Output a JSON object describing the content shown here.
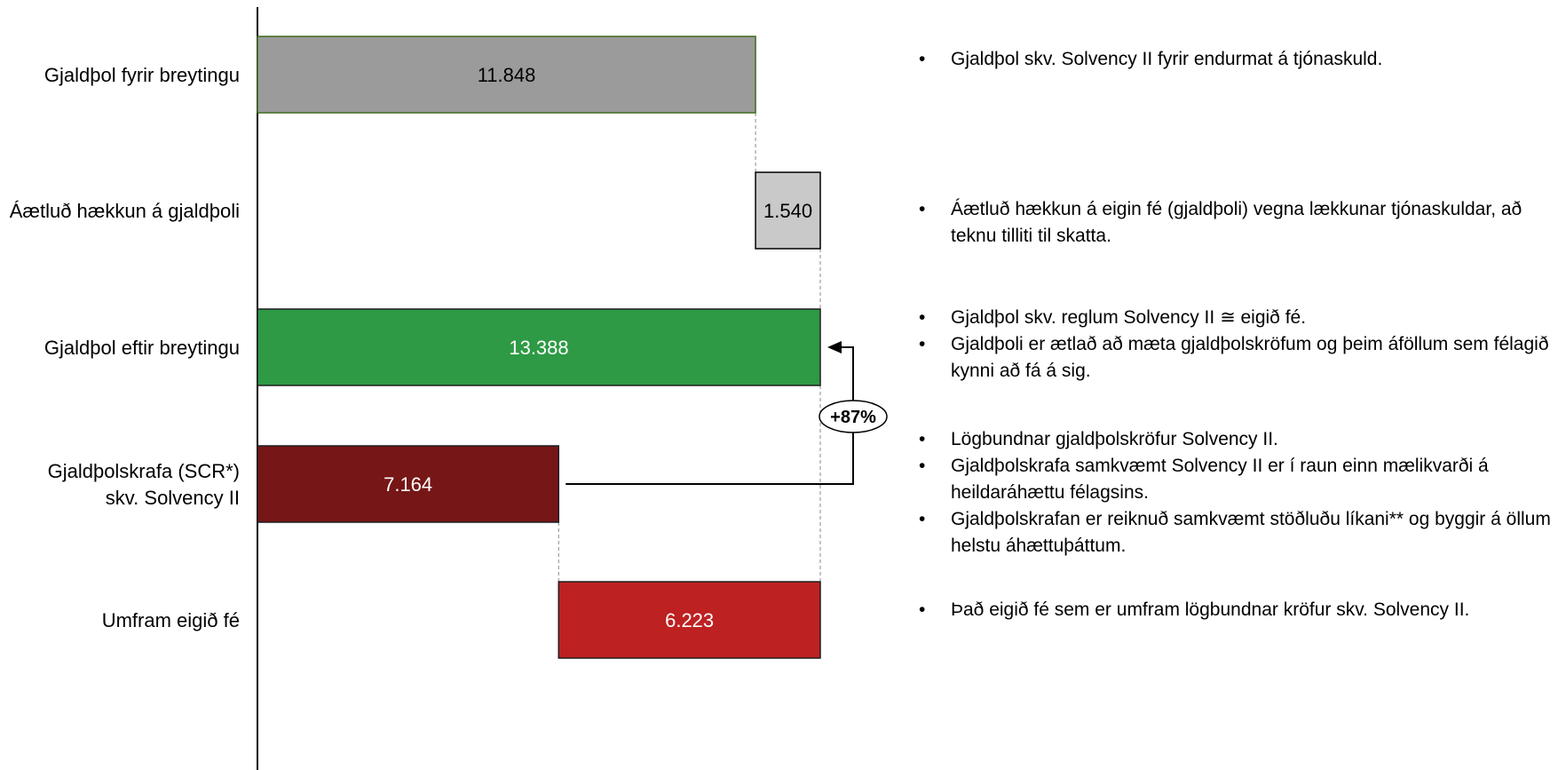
{
  "chart_data": {
    "type": "waterfall",
    "categories": [
      "Gjaldþol fyrir breytingu",
      "Áætluð hækkun á gjaldþoli",
      "Gjaldþol eftir breytingu",
      "Gjaldþolskrafa (SCR*)|skv. Solvency II",
      "Umfram eigið fé"
    ],
    "bars": [
      {
        "label": "11.848",
        "start": 0,
        "end": 11848,
        "color": "#9b9b9b",
        "border": "#3e6b1f",
        "text_color": "#000000"
      },
      {
        "label": "1.540",
        "start": 11848,
        "end": 13388,
        "color": "#c9c9c9",
        "border": "#000000",
        "text_color": "#000000"
      },
      {
        "label": "13.388",
        "start": 0,
        "end": 13388,
        "color": "#2e9a45",
        "border": "#1f1f1f",
        "text_color": "#ffffff"
      },
      {
        "label": "7.164",
        "start": 0,
        "end": 7164,
        "color": "#761616",
        "border": "#1f1f1f",
        "text_color": "#ffffff"
      },
      {
        "label": "6.223",
        "start": 7164,
        "end": 13388,
        "color": "#bd2121",
        "border": "#1f1f1f",
        "text_color": "#ffffff"
      }
    ],
    "annotation": {
      "text": "+87%",
      "from_bar": 3,
      "to_bar": 2
    }
  },
  "notes": [
    [
      "Gjaldþol skv. Solvency II fyrir endurmat á tjónaskuld."
    ],
    [
      "Áætluð hækkun á eigin fé (gjaldþoli) vegna lækkunar tjónaskuldar, að teknu tilliti til skatta."
    ],
    [
      "Gjaldþol skv. reglum Solvency II ≅ eigið fé.",
      "Gjaldþoli er ætlað að mæta gjaldþolskröfum og þeim áföllum sem félagið kynni að fá á sig."
    ],
    [
      "Lögbundnar gjaldþolskröfur Solvency II.",
      "Gjaldþolskrafa samkvæmt Solvency II er í raun einn mælikvarði á heildaráhættu félagsins.",
      "Gjaldþolskrafan er reiknuð samkvæmt stöðluðu líkani** og byggir á öllum helstu áhættuþáttum."
    ],
    [
      "Það eigið fé sem er umfram lögbundnar kröfur skv. Solvency II."
    ]
  ]
}
